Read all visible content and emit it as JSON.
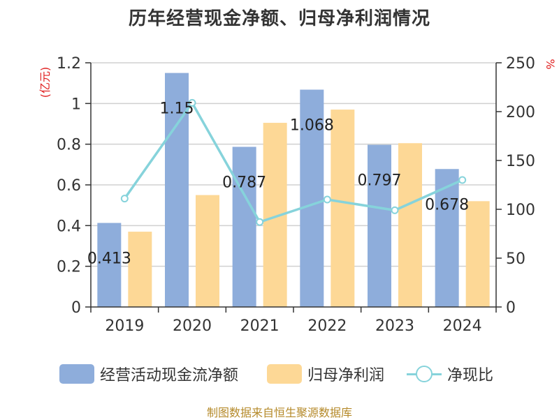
{
  "title": "历年经营现金净额、归母净利润情况",
  "source": "制图数据来自恒生聚源数据库",
  "chart_data": {
    "type": "bar",
    "categories": [
      "2019",
      "2020",
      "2021",
      "2022",
      "2023",
      "2024"
    ],
    "series": [
      {
        "name": "经营活动现金流净额",
        "kind": "bar",
        "axis": "left",
        "color": "#8eaddb",
        "values": [
          0.413,
          1.15,
          0.787,
          1.068,
          0.797,
          0.678
        ]
      },
      {
        "name": "归母净利润",
        "kind": "bar",
        "axis": "left",
        "color": "#fdd896",
        "values": [
          0.37,
          0.55,
          0.905,
          0.97,
          0.805,
          0.52
        ]
      },
      {
        "name": "净现比",
        "kind": "line",
        "axis": "right",
        "color": "#86d3db",
        "values": [
          111,
          209,
          87,
          110,
          99,
          130
        ]
      }
    ],
    "data_labels": [
      "0.413",
      "1.15",
      "0.787",
      "1.068",
      "0.797",
      "0.678"
    ],
    "y_left": {
      "label": "(亿元)",
      "min": 0,
      "max": 1.2,
      "ticks": [
        0,
        0.2,
        0.4,
        0.6,
        0.8,
        1,
        1.2
      ],
      "tick_labels": [
        "0",
        "0.2",
        "0.4",
        "0.6",
        "0.8",
        "1",
        "1.2"
      ]
    },
    "y_right": {
      "label": "%",
      "min": 0,
      "max": 250,
      "ticks": [
        0,
        50,
        100,
        150,
        200,
        250
      ],
      "tick_labels": [
        "0",
        "50",
        "100",
        "150",
        "200",
        "250"
      ]
    },
    "grid": true,
    "legend_position": "bottom",
    "colors": {
      "axis": "#333333",
      "grid": "#d0d0d0",
      "axis_label": "#e02020"
    }
  }
}
